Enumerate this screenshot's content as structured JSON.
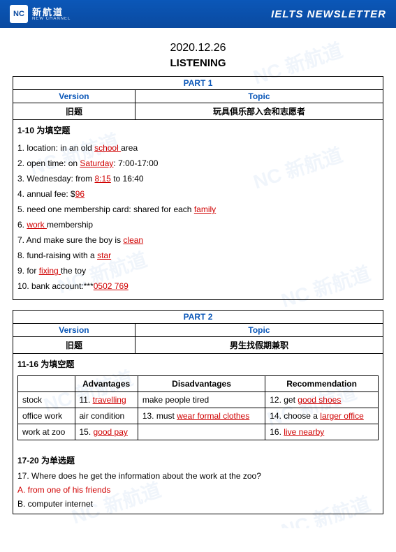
{
  "brand": {
    "badge": "NC",
    "cn": "新航道",
    "en": "NEW CHANNEL"
  },
  "header_title": "IELTS  NEWSLETTER",
  "date": "2020.12.26",
  "section_heading": "LISTENING",
  "part1": {
    "part_label": "PART 1",
    "version_label": "Version",
    "topic_label": "Topic",
    "version_value": "旧题",
    "topic_value": "玩具俱乐部入会和志愿者",
    "qrange_title": "1-10 为填空题",
    "questions": [
      {
        "pre": "1. location: in an old ",
        "ans": "school ",
        "post": "area"
      },
      {
        "pre": "2. open time: on ",
        "ans": "Saturday",
        "post": ": 7:00-17:00"
      },
      {
        "pre": "3. Wednesday: from ",
        "ans": "8:15",
        "post": " to 16:40"
      },
      {
        "pre": "4. annual fee: $",
        "ans": "96",
        "post": ""
      },
      {
        "pre": "5. need one membership card: shared for each ",
        "ans": "family",
        "post": ""
      },
      {
        "pre": "6. ",
        "ans": "work ",
        "post": "membership"
      },
      {
        "pre": "7. And make sure the boy is ",
        "ans": "clean",
        "post": ""
      },
      {
        "pre": "8. fund-raising with a ",
        "ans": "star",
        "post": ""
      },
      {
        "pre": "9. for ",
        "ans": "fixing ",
        "post": "the toy"
      },
      {
        "pre": "10. bank account:***",
        "ans": "0502 769",
        "post": ""
      }
    ]
  },
  "part2": {
    "part_label": "PART 2",
    "version_label": "Version",
    "topic_label": "Topic",
    "version_value": "旧题",
    "topic_value": "男生找假期兼职",
    "qrange_title": "11-16 为填空题",
    "table": {
      "headers": [
        "",
        "Advantages",
        "Disadvantages",
        "Recommendation"
      ],
      "rows": [
        {
          "job": "stock",
          "adv": {
            "pre": "11.  ",
            "ans": "travelling"
          },
          "dis": {
            "pre": "make people tired",
            "ans": ""
          },
          "rec": {
            "pre": "12.  get ",
            "ans": "good shoes"
          }
        },
        {
          "job": "office work",
          "adv": {
            "pre": "air condition",
            "ans": ""
          },
          "dis": {
            "pre": "13. must ",
            "ans": "wear formal clothes"
          },
          "rec": {
            "pre": "14. choose a ",
            "ans": "larger office"
          }
        },
        {
          "job": "work at zoo",
          "adv": {
            "pre": "15.  ",
            "ans": "good pay"
          },
          "dis": {
            "pre": "",
            "ans": ""
          },
          "rec": {
            "pre": "16. ",
            "ans": "live nearby"
          }
        }
      ]
    },
    "mc_title": "17-20 为单选题",
    "mc": {
      "stem": "17.  Where does he get the information about the work at the zoo?",
      "optA": "A.  from one of his friends",
      "optB": "B.  computer internet"
    }
  },
  "colors": {
    "header_bg": "#0a4aa0",
    "accent": "#0b57b8",
    "answer": "#d00000"
  }
}
